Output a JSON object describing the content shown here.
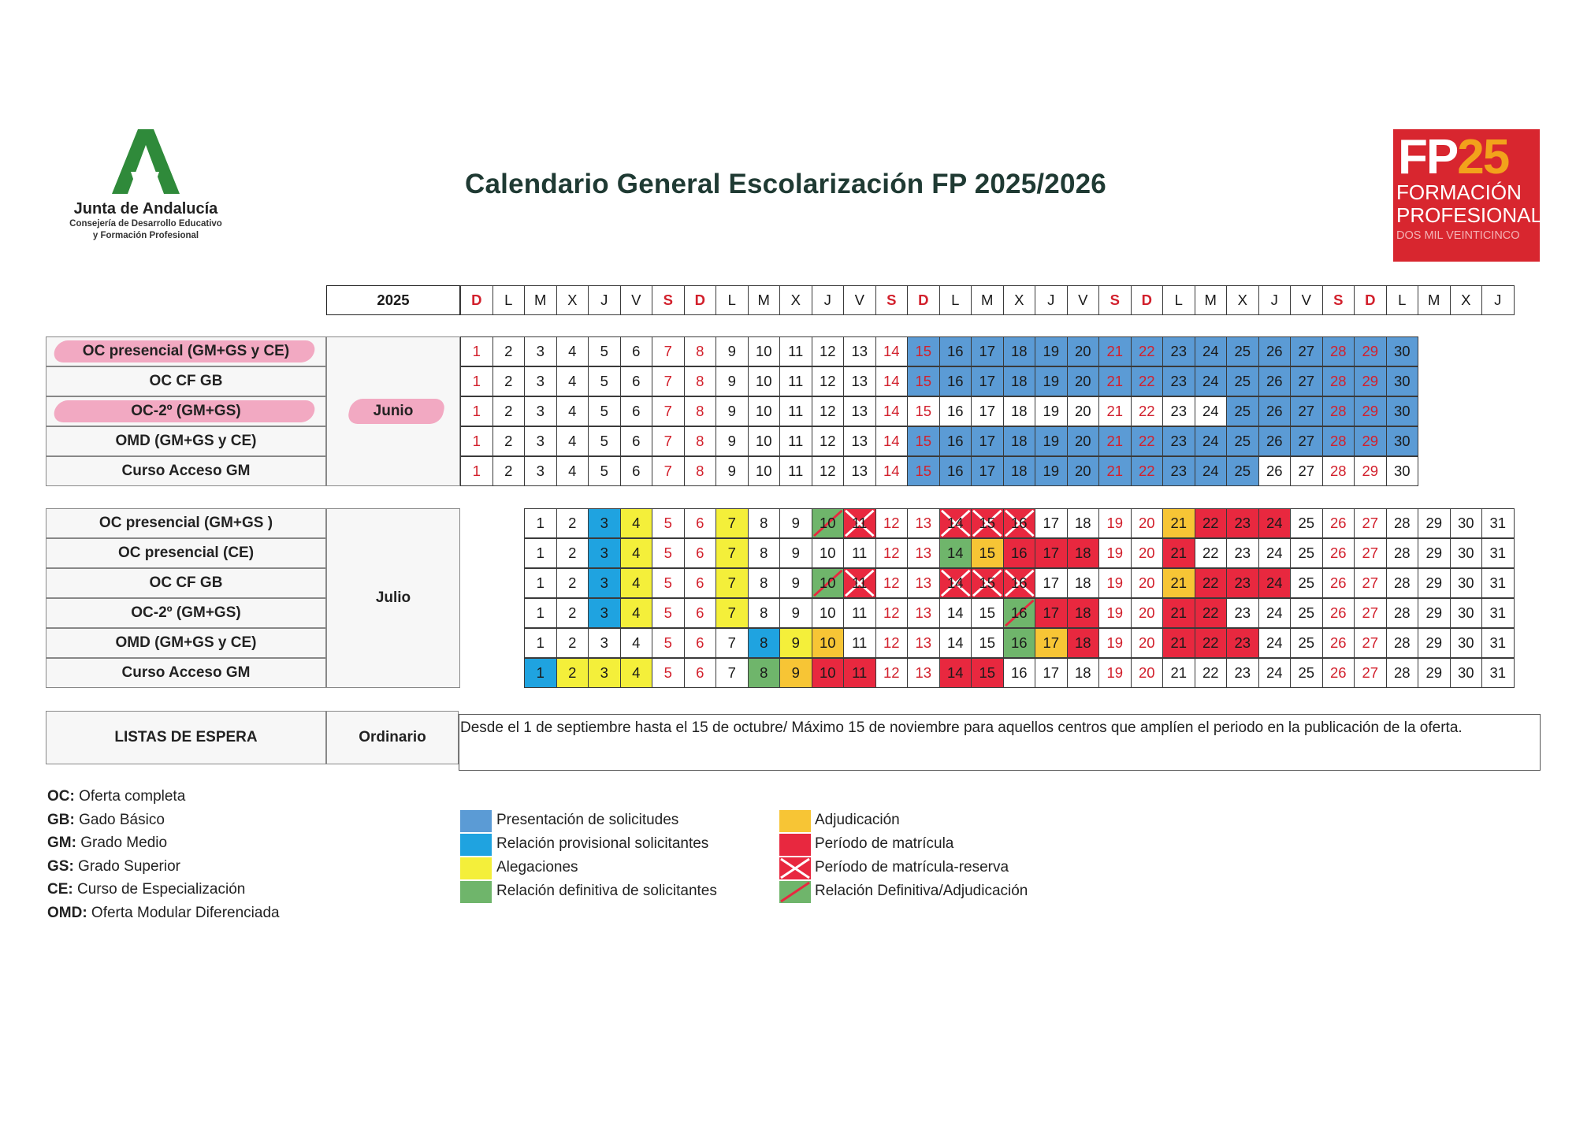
{
  "header": {
    "org_name": "Junta de Andalucía",
    "org_sub_1": "Consejería de Desarrollo Educativo",
    "org_sub_2": "y Formación Profesional",
    "title": "Calendario General Escolarización FP 2025/2026",
    "fp_logo": {
      "fp": "FP",
      "num": "25",
      "line1": "FORMACIÓN",
      "line2": "PROFESIONAL",
      "line3": "DOS MIL VEINTICINCO"
    }
  },
  "weekday_header": {
    "year": "2025",
    "days": [
      "D",
      "L",
      "M",
      "X",
      "J",
      "V",
      "S",
      "D",
      "L",
      "M",
      "X",
      "J",
      "V",
      "S",
      "D",
      "L",
      "M",
      "X",
      "J",
      "V",
      "S",
      "D",
      "L",
      "M",
      "X",
      "J",
      "V",
      "S",
      "D",
      "L",
      "M",
      "X",
      "J"
    ],
    "red_days": [
      0,
      6,
      7,
      13,
      14,
      20,
      21,
      27,
      28
    ]
  },
  "june": {
    "month": "Junio",
    "rows": [
      {
        "label": "OC presencial  (GM+GS y CE)",
        "highlighted": true,
        "cells": [
          "",
          "",
          "",
          "",
          "",
          "",
          "",
          "",
          "",
          "",
          "",
          "",
          "",
          "",
          "bl",
          "bl",
          "bl",
          "bl",
          "bl",
          "bl",
          "bl",
          "bl",
          "bl",
          "bl",
          "bl",
          "bl",
          "bl",
          "bl",
          "bl",
          "bl"
        ]
      },
      {
        "label": "OC CF GB",
        "highlighted": false,
        "cells": [
          "",
          "",
          "",
          "",
          "",
          "",
          "",
          "",
          "",
          "",
          "",
          "",
          "",
          "",
          "bl",
          "bl",
          "bl",
          "bl",
          "bl",
          "bl",
          "bl",
          "bl",
          "bl",
          "bl",
          "bl",
          "bl",
          "bl",
          "bl",
          "bl",
          "bl"
        ]
      },
      {
        "label": "OC-2º (GM+GS)",
        "highlighted": true,
        "cells": [
          "",
          "",
          "",
          "",
          "",
          "",
          "",
          "",
          "",
          "",
          "",
          "",
          "",
          "",
          "",
          "",
          "",
          "",
          "",
          "",
          "",
          "",
          "",
          "",
          "bl",
          "bl",
          "bl",
          "bl",
          "bl",
          "bl"
        ]
      },
      {
        "label": "OMD (GM+GS y CE)",
        "highlighted": false,
        "cells": [
          "",
          "",
          "",
          "",
          "",
          "",
          "",
          "",
          "",
          "",
          "",
          "",
          "",
          "",
          "bl",
          "bl",
          "bl",
          "bl",
          "bl",
          "bl",
          "bl",
          "bl",
          "bl",
          "bl",
          "bl",
          "bl",
          "bl",
          "bl",
          "bl",
          "bl"
        ]
      },
      {
        "label": "Curso Acceso GM",
        "highlighted": false,
        "cells": [
          "",
          "",
          "",
          "",
          "",
          "",
          "",
          "",
          "",
          "",
          "",
          "",
          "",
          "",
          "bl",
          "bl",
          "bl",
          "bl",
          "bl",
          "bl",
          "bl",
          "bl",
          "bl",
          "bl",
          "bl",
          "",
          "",
          "",
          "",
          ""
        ]
      }
    ],
    "red_days": [
      1,
      7,
      8,
      14,
      15,
      21,
      22,
      28,
      29
    ]
  },
  "july": {
    "month": "Julio",
    "rows": [
      {
        "label": "OC presencial  (GM+GS )",
        "cells": [
          "",
          "",
          "bd",
          "ye",
          "",
          "",
          "ye",
          "",
          "",
          "dg",
          "xr",
          "",
          "",
          "xr",
          "xr",
          "xr",
          "",
          "",
          "",
          "",
          "ad",
          "mt",
          "mt",
          "mt",
          "",
          "",
          "",
          "",
          "",
          "",
          ""
        ]
      },
      {
        "label": "OC presencial (CE)",
        "cells": [
          "",
          "",
          "bd",
          "ye",
          "",
          "",
          "ye",
          "",
          "",
          "",
          "",
          "",
          "",
          "gr",
          "ad",
          "mt",
          "mt",
          "mt",
          "",
          "",
          "mt",
          "",
          "",
          "",
          "",
          "",
          "",
          "",
          "",
          "",
          ""
        ]
      },
      {
        "label": "OC CF GB",
        "cells": [
          "",
          "",
          "bd",
          "ye",
          "",
          "",
          "ye",
          "",
          "",
          "dg",
          "xr",
          "",
          "",
          "xr",
          "xr",
          "xr",
          "",
          "",
          "",
          "",
          "ad",
          "mt",
          "mt",
          "mt",
          "",
          "",
          "",
          "",
          "",
          "",
          ""
        ]
      },
      {
        "label": "OC-2º (GM+GS)",
        "cells": [
          "",
          "",
          "bd",
          "ye",
          "",
          "",
          "ye",
          "",
          "",
          "",
          "",
          "",
          "",
          "",
          "",
          "dg",
          "mt",
          "mt",
          "",
          "",
          "mt",
          "mt",
          "",
          "",
          "",
          "",
          "",
          "",
          "",
          "",
          ""
        ]
      },
      {
        "label": "OMD (GM+GS y CE)",
        "cells": [
          "",
          "",
          "",
          "",
          "",
          "",
          "",
          "bd",
          "ye",
          "ad",
          "",
          "",
          "",
          "",
          "",
          "gr",
          "ad",
          "mt",
          "",
          "",
          "mt",
          "mt",
          "mt",
          "",
          "",
          "",
          "",
          "",
          "",
          "",
          ""
        ]
      },
      {
        "label": "Curso Acceso GM",
        "cells": [
          "bd",
          "ye",
          "ye",
          "ye",
          "",
          "",
          "",
          "gr",
          "ad",
          "mt",
          "mt",
          "",
          "",
          "mt",
          "mt",
          "",
          "",
          "",
          "",
          "",
          "",
          "",
          "",
          "",
          "",
          "",
          "",
          "",
          "",
          "",
          ""
        ]
      }
    ],
    "red_days": [
      5,
      6,
      12,
      13,
      19,
      20,
      26,
      27
    ]
  },
  "waiting_list": {
    "label": "LISTAS DE ESPERA",
    "type": "Ordinario",
    "text": "Desde el 1 de septiembre hasta el 15 de octubre/ Máximo 15 de noviembre para aquellos centros que amplíen el periodo en la publicación de la oferta."
  },
  "abbreviations": [
    {
      "abbr": "OC:",
      "text": " Oferta completa"
    },
    {
      "abbr": "GB:",
      "text": " Gado Básico"
    },
    {
      "abbr": "GM:",
      "text": " Grado Medio"
    },
    {
      "abbr": "GS:",
      "text": " Grado Superior"
    },
    {
      "abbr": "CE:",
      "text": " Curso de Especialización"
    },
    {
      "abbr": "OMD:",
      "text": " Oferta Modular Diferenciada"
    }
  ],
  "legend_left": [
    {
      "key": "bl",
      "label": "Presentación de solicitudes"
    },
    {
      "key": "bd",
      "label": "Relación provisional solicitantes"
    },
    {
      "key": "ye",
      "label": "Alegaciones"
    },
    {
      "key": "gr",
      "label": "Relación definitiva de solicitantes"
    }
  ],
  "legend_right": [
    {
      "key": "ad",
      "label": "Adjudicación"
    },
    {
      "key": "mt",
      "label": "Período de matrícula"
    },
    {
      "key": "xr",
      "label": "Período de matrícula-reserva"
    },
    {
      "key": "dg",
      "label": "Relación Definitiva/Adjudicación"
    }
  ],
  "colors": {
    "bl": "#5b9bd5",
    "bd": "#1fa3e0",
    "ye": "#f4ef3a",
    "gr": "#6fb56b",
    "ad": "#f7c535",
    "mt": "#e8283f",
    "xr": "#e8283f",
    "dg": "#6fb56b",
    "weekend_text": "#d2202c"
  }
}
